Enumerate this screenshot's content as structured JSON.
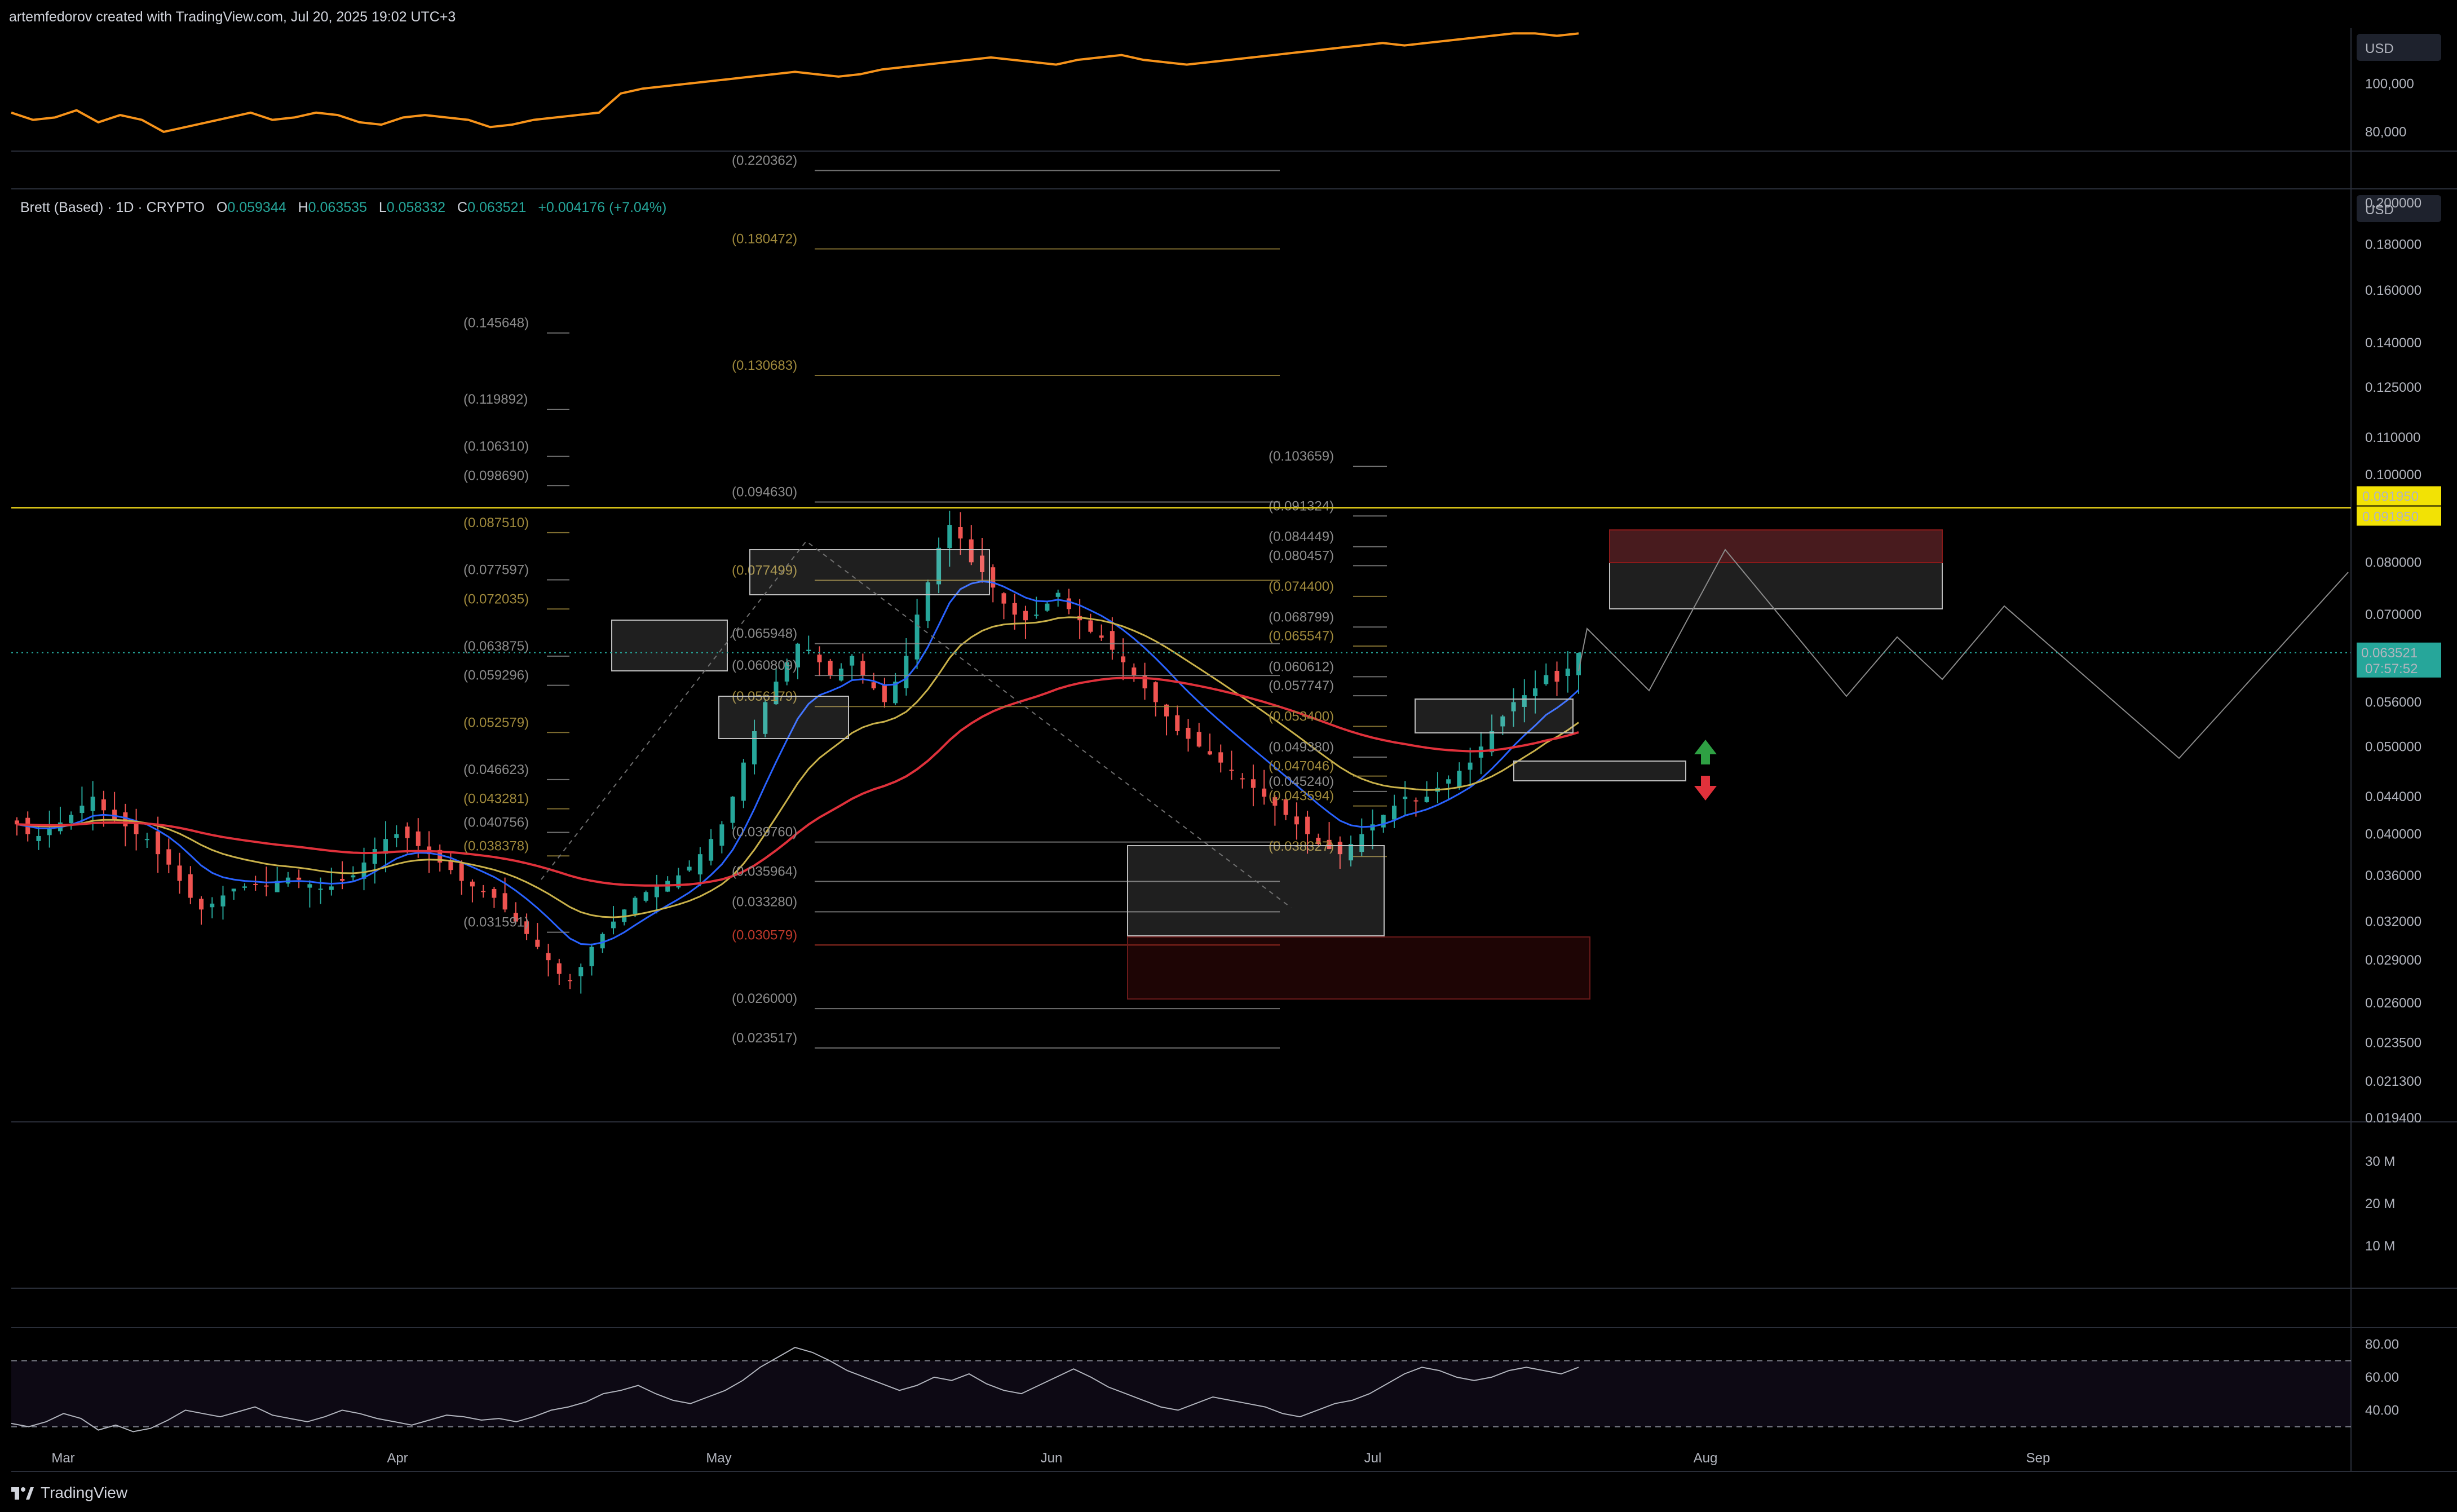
{
  "header": {
    "caption": "artemfedorov created with TradingView.com, Jul 20, 2025 19:02 UTC+3"
  },
  "legend": {
    "symbol": "Brett (Based) · 1D · CRYPTO",
    "o_label": "O",
    "o": "0.059344",
    "h_label": "H",
    "h": "0.063535",
    "l_label": "L",
    "l": "0.058332",
    "c_label": "C",
    "c": "0.063521",
    "change": "+0.004176 (+7.04%)"
  },
  "footer": {
    "brand": "TradingView"
  },
  "colors": {
    "up": "#26a69a",
    "down": "#ef5350",
    "ema_fast": "#2962ff",
    "ema_mid": "#c9b14a",
    "ema_slow": "#e0313b",
    "compare_line": "#f7931a",
    "rsi": "#b2b5be",
    "fib_gray": "#8c8c8c",
    "fib_gold": "#a08a3c",
    "fib_red": "#c0392b",
    "yellow_line": "#d4c017",
    "bg": "#000000"
  },
  "icons": {
    "up_arrow": "green-up-arrow-icon",
    "down_arrow": "red-down-arrow-icon",
    "brand": "tradingview-logo-icon"
  },
  "chart_data": [
    {
      "type": "line",
      "pane": "compare",
      "currency": "USD",
      "y_ticks": [
        "100,000",
        "80,000"
      ],
      "ylim": [
        72000,
        122000
      ],
      "series": [
        {
          "values": [
            88,
            85,
            86,
            89,
            84,
            87,
            85,
            80,
            82,
            84,
            86,
            88,
            85,
            86,
            88,
            87,
            84,
            83,
            86,
            87,
            86,
            85,
            82,
            83,
            85,
            86,
            87,
            88,
            96,
            98,
            99,
            100,
            101,
            102,
            103,
            104,
            105,
            104,
            103,
            104,
            106,
            107,
            108,
            109,
            110,
            111,
            110,
            109,
            108,
            110,
            111,
            112,
            110,
            109,
            108,
            109,
            110,
            111,
            112,
            113,
            114,
            115,
            116,
            117,
            116,
            117,
            118,
            119,
            120,
            121,
            121,
            120,
            121
          ]
        }
      ]
    },
    {
      "type": "candlestick",
      "pane": "price",
      "currency": "USD",
      "x_ticks": [
        "Mar",
        "Apr",
        "May",
        "Jun",
        "Jul",
        "Aug",
        "Sep"
      ],
      "y_ticks": [
        "0.200000",
        "0.180000",
        "0.160000",
        "0.140000",
        "0.125000",
        "0.110000",
        "0.100000",
        "0.080000",
        "0.070000",
        "0.056000",
        "0.050000",
        "0.044000",
        "0.040000",
        "0.036000",
        "0.032000",
        "0.029000",
        "0.026000",
        "0.023500",
        "0.021300",
        "0.019400"
      ],
      "ylim": [
        0.0192,
        0.2
      ],
      "log_scale": true,
      "last_price": "0.063521",
      "countdown": "07:57:52",
      "level_label_1": "0.091950",
      "level_label_2": "0.091950",
      "fib_levels_left": [
        "(0.145648)",
        "(0.119892)",
        "(0.106310)",
        "(0.098690)",
        "(0.087510)",
        "(0.077597)",
        "(0.072035)",
        "(0.063875)",
        "(0.059296)",
        "(0.052579)",
        "(0.046623)",
        "(0.043281)",
        "(0.040756)",
        "(0.038378)",
        "(0.031591)"
      ],
      "fib_levels_mid": [
        "(0.220362)",
        "(0.180472)",
        "(0.130683)",
        "(0.094630)",
        "(0.077499)",
        "(0.065948)",
        "(0.056179)",
        "(0.060809)",
        "(0.039760)",
        "(0.035964)",
        "(0.033280)",
        "(0.030579)",
        "(0.026000)",
        "(0.023517)"
      ],
      "fib_levels_right": [
        "(0.103659)",
        "(0.091324)",
        "(0.084449)",
        "(0.080457)",
        "(0.074400)",
        "(0.068799)",
        "(0.065547)",
        "(0.060612)",
        "(0.057747)",
        "(0.053400)",
        "(0.049380)",
        "(0.047046)",
        "(0.045240)",
        "(0.043594)",
        "(0.038327)"
      ],
      "closes": [
        0.041,
        0.04,
        0.0398,
        0.0405,
        0.0412,
        0.042,
        0.043,
        0.044,
        0.0425,
        0.0415,
        0.0408,
        0.04,
        0.0395,
        0.038,
        0.037,
        0.0355,
        0.034,
        0.033,
        0.0335,
        0.0342,
        0.0348,
        0.035,
        0.0352,
        0.035,
        0.0355,
        0.0358,
        0.0356,
        0.0352,
        0.0348,
        0.035,
        0.0355,
        0.036,
        0.0372,
        0.0385,
        0.0395,
        0.04,
        0.0396,
        0.0388,
        0.038,
        0.0372,
        0.0365,
        0.0355,
        0.035,
        0.0345,
        0.034,
        0.033,
        0.032,
        0.031,
        0.03,
        0.029,
        0.028,
        0.0275,
        0.0285,
        0.03,
        0.031,
        0.032,
        0.033,
        0.034,
        0.0345,
        0.035,
        0.0355,
        0.036,
        0.0368,
        0.038,
        0.0395,
        0.041,
        0.044,
        0.048,
        0.052,
        0.056,
        0.059,
        0.062,
        0.065,
        0.064,
        0.062,
        0.06,
        0.061,
        0.063,
        0.06,
        0.058,
        0.056,
        0.059,
        0.063,
        0.07,
        0.076,
        0.083,
        0.088,
        0.085,
        0.08,
        0.078,
        0.075,
        0.072,
        0.07,
        0.069,
        0.07,
        0.072,
        0.074,
        0.071,
        0.069,
        0.067,
        0.066,
        0.064,
        0.062,
        0.06,
        0.058,
        0.056,
        0.054,
        0.052,
        0.051,
        0.05,
        0.049,
        0.048,
        0.047,
        0.046,
        0.045,
        0.044,
        0.043,
        0.042,
        0.041,
        0.04,
        0.039,
        0.0385,
        0.038,
        0.039,
        0.04,
        0.041,
        0.042,
        0.043,
        0.044,
        0.0435,
        0.044,
        0.045,
        0.046,
        0.047,
        0.048,
        0.05,
        0.052,
        0.054,
        0.056,
        0.057,
        0.058,
        0.06,
        0.059,
        0.061,
        0.0635
      ]
    },
    {
      "type": "bar",
      "pane": "volume",
      "y_ticks": [
        "30 M",
        "20 M",
        "10 M"
      ]
    },
    {
      "type": "line",
      "pane": "rsi",
      "y_ticks": [
        "80.00",
        "60.00",
        "40.00"
      ],
      "ylim": [
        20,
        90
      ],
      "series": [
        {
          "values": [
            32,
            30,
            33,
            38,
            35,
            28,
            31,
            27,
            29,
            34,
            40,
            38,
            36,
            39,
            42,
            37,
            35,
            33,
            36,
            40,
            38,
            35,
            33,
            31,
            34,
            37,
            36,
            34,
            35,
            33,
            36,
            40,
            42,
            45,
            50,
            52,
            55,
            50,
            46,
            44,
            48,
            52,
            58,
            66,
            72,
            78,
            75,
            70,
            64,
            60,
            56,
            52,
            55,
            60,
            58,
            62,
            56,
            52,
            50,
            55,
            60,
            65,
            60,
            54,
            50,
            46,
            42,
            40,
            44,
            48,
            46,
            44,
            42,
            38,
            36,
            40,
            44,
            46,
            50,
            56,
            62,
            66,
            64,
            60,
            58,
            60,
            64,
            66,
            64,
            62,
            66
          ]
        }
      ]
    }
  ]
}
